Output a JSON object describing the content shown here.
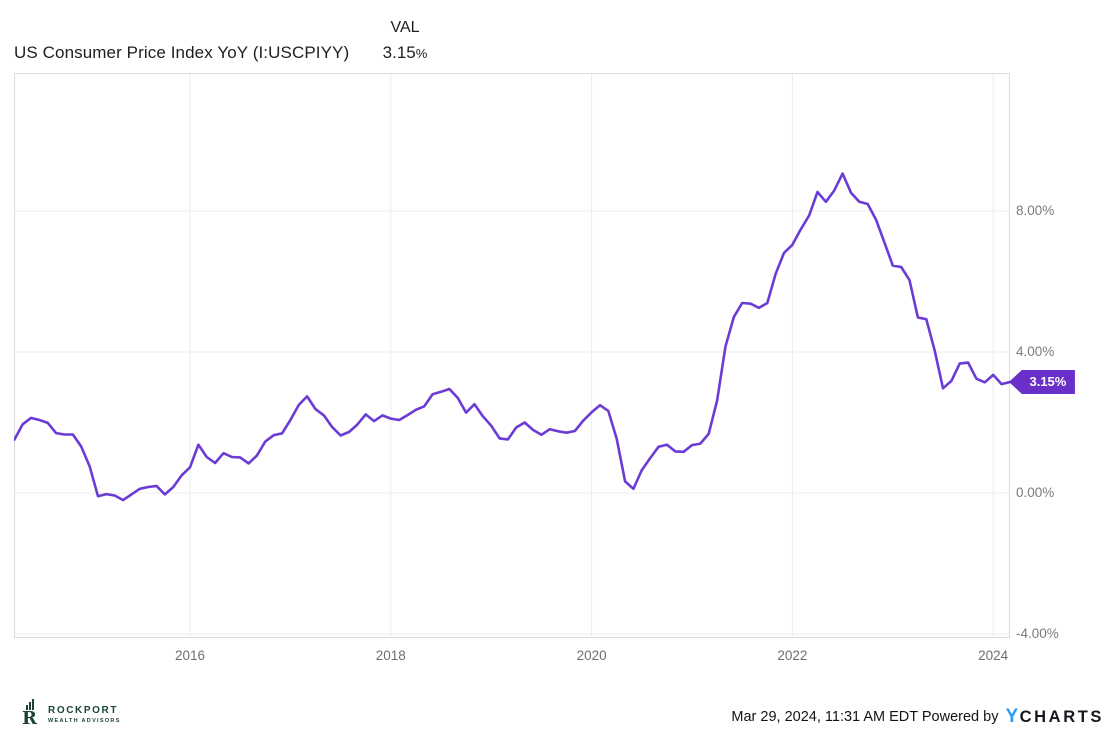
{
  "header": {
    "title": "US Consumer Price Index YoY (I:USCPIYY)",
    "val_label": "VAL",
    "val_value": "3.15",
    "val_unit": "%"
  },
  "chart_data": {
    "type": "line",
    "title": "US Consumer Price Index YoY (I:USCPIYY)",
    "series_name": "US Consumer Price Index YoY",
    "unit": "percent",
    "frequency": "monthly",
    "x_start": "2014-03",
    "x_end": "2024-02",
    "values": [
      1.51,
      1.95,
      2.13,
      2.07,
      1.99,
      1.7,
      1.66,
      1.66,
      1.32,
      0.76,
      -0.09,
      -0.03,
      -0.07,
      -0.2,
      -0.04,
      0.12,
      0.17,
      0.2,
      -0.04,
      0.17,
      0.5,
      0.73,
      1.37,
      1.02,
      0.85,
      1.13,
      1.02,
      1.01,
      0.84,
      1.06,
      1.46,
      1.64,
      1.69,
      2.07,
      2.5,
      2.74,
      2.38,
      2.2,
      1.87,
      1.63,
      1.73,
      1.94,
      2.23,
      2.04,
      2.2,
      2.11,
      2.07,
      2.21,
      2.36,
      2.46,
      2.8,
      2.87,
      2.95,
      2.7,
      2.28,
      2.52,
      2.18,
      1.91,
      1.55,
      1.52,
      1.86,
      2.0,
      1.79,
      1.65,
      1.81,
      1.75,
      1.71,
      1.76,
      2.05,
      2.29,
      2.49,
      2.33,
      1.54,
      0.33,
      0.12,
      0.65,
      0.99,
      1.31,
      1.37,
      1.18,
      1.17,
      1.36,
      1.4,
      1.68,
      2.62,
      4.16,
      4.99,
      5.39,
      5.37,
      5.25,
      5.39,
      6.22,
      6.81,
      7.04,
      7.48,
      7.87,
      8.54,
      8.26,
      8.58,
      9.06,
      8.52,
      8.26,
      8.2,
      7.75,
      7.11,
      6.45,
      6.41,
      6.04,
      4.98,
      4.93,
      4.05,
      2.97,
      3.18,
      3.67,
      3.7,
      3.24,
      3.14,
      3.35,
      3.09,
      3.15
    ],
    "last_value_label": "3.15%",
    "y_ticks": [
      {
        "value": 8,
        "label": "8.00%"
      },
      {
        "value": 4,
        "label": "4.00%"
      },
      {
        "value": 0,
        "label": "0.00%"
      },
      {
        "value": -4,
        "label": "-4.00%"
      }
    ],
    "x_ticks": [
      {
        "year": 2016,
        "label": "2016"
      },
      {
        "year": 2018,
        "label": "2018"
      },
      {
        "year": 2020,
        "label": "2020"
      },
      {
        "year": 2022,
        "label": "2022"
      },
      {
        "year": 2024,
        "label": "2024"
      }
    ],
    "x_range_years": [
      2014.25,
      2024.2
    ],
    "y_range": [
      -4.1,
      11.9
    ],
    "grid": true,
    "legend": "none",
    "line_color": "#6B3BD6",
    "badge_color": "#6B2FC9",
    "grid_color": "#ececec",
    "border_color": "#dcdcdc"
  },
  "footer": {
    "brand": {
      "name": "ROCKPORT",
      "subname": "WEALTH ADVISORS",
      "icon": "rockport-r-bars-icon",
      "color": "#1C4433"
    },
    "timestamp_and_powered": "Mar 29, 2024, 11:31 AM EDT Powered by",
    "ycharts": {
      "y": "Y",
      "charts": "CHARTS",
      "y_color": "#2E9BF4"
    }
  }
}
